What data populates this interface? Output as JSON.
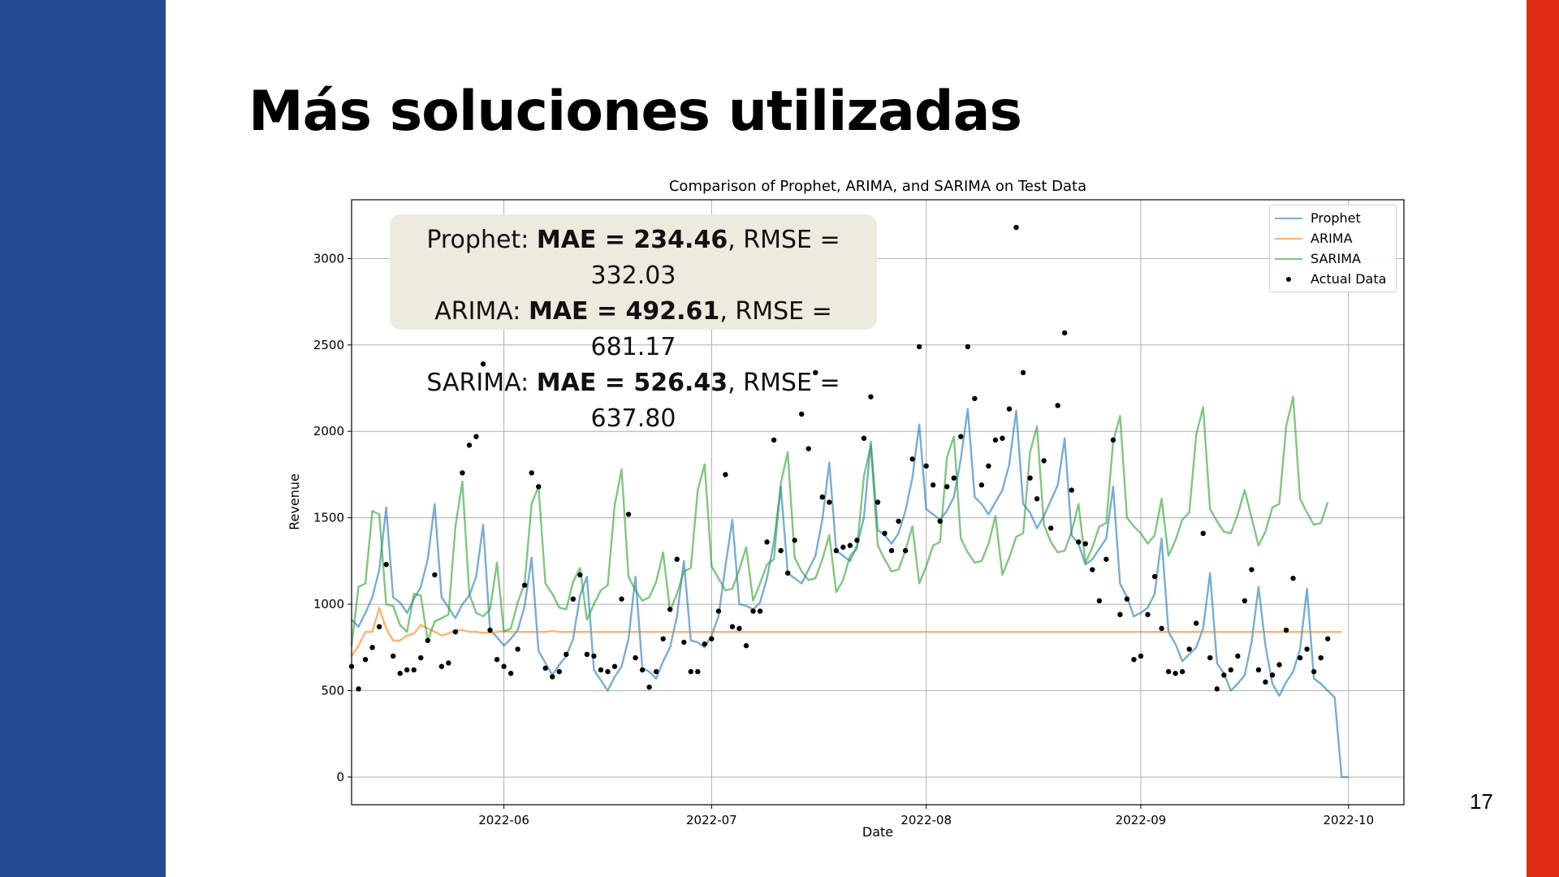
{
  "slide": {
    "title": "Más soluciones utilizadas",
    "page_number": "17",
    "left_bar_color": "#244a91",
    "right_bar_color": "#e02e16"
  },
  "metrics": [
    {
      "model": "Prophet",
      "mae": "MAE = 234.46",
      "rmse": ", RMSE = 332.03"
    },
    {
      "model": "ARIMA",
      "mae": "MAE = 492.61",
      "rmse": ", RMSE = 681.17"
    },
    {
      "model": "SARIMA",
      "mae": "MAE = 526.43",
      "rmse": ", RMSE = 637.80"
    }
  ],
  "chart_data": {
    "type": "line",
    "title": "Comparison of Prophet, ARIMA, and SARIMA on Test Data",
    "xlabel": "Date",
    "ylabel": "Revenue",
    "x_start": "2022-05-10",
    "x_ticks": [
      "2022-06",
      "2022-07",
      "2022-08",
      "2022-09",
      "2022-10"
    ],
    "y_ticks": [
      0,
      500,
      1000,
      1500,
      2000,
      2500,
      3000
    ],
    "ylim": [
      -160,
      3340
    ],
    "grid": true,
    "legend_position": "top-right",
    "series": [
      {
        "name": "Prophet",
        "color": "#1f77b4",
        "style": "line",
        "values": [
          910,
          870,
          950,
          1040,
          1200,
          1560,
          1040,
          1010,
          950,
          1030,
          1100,
          1260,
          1580,
          1040,
          980,
          920,
          1000,
          1050,
          1160,
          1460,
          850,
          810,
          760,
          800,
          850,
          990,
          1270,
          730,
          660,
          590,
          650,
          700,
          800,
          1050,
          1160,
          620,
          560,
          500,
          580,
          640,
          800,
          1160,
          630,
          610,
          570,
          670,
          750,
          930,
          1250,
          790,
          780,
          750,
          820,
          930,
          1220,
          1490,
          1000,
          990,
          970,
          1010,
          1150,
          1360,
          1680,
          1180,
          1150,
          1120,
          1200,
          1280,
          1490,
          1820,
          1310,
          1280,
          1250,
          1340,
          1500,
          1940,
          1430,
          1400,
          1350,
          1410,
          1540,
          1730,
          2040,
          1550,
          1520,
          1490,
          1540,
          1620,
          1840,
          2130,
          1620,
          1580,
          1520,
          1590,
          1660,
          1810,
          2120,
          1580,
          1530,
          1440,
          1510,
          1600,
          1690,
          1960,
          1400,
          1350,
          1230,
          1260,
          1320,
          1380,
          1680,
          1120,
          1040,
          930,
          950,
          980,
          1060,
          1380,
          840,
          770,
          670,
          710,
          750,
          860,
          1180,
          660,
          600,
          500,
          540,
          590,
          780,
          1100,
          760,
          540,
          470,
          550,
          610,
          740,
          1090,
          570,
          540,
          500,
          460,
          0,
          0
        ]
      },
      {
        "name": "ARIMA",
        "color": "#ff7f0e",
        "style": "line",
        "values": [
          700,
          760,
          840,
          840,
          980,
          860,
          790,
          790,
          820,
          830,
          880,
          860,
          840,
          820,
          830,
          850,
          850,
          840,
          840,
          835,
          835,
          840,
          845,
          840,
          840,
          840,
          840,
          840,
          840,
          845,
          840,
          840,
          840,
          840,
          840,
          840,
          840,
          840,
          840,
          840,
          840,
          840,
          840,
          840,
          840,
          840,
          840,
          840,
          840,
          840,
          840,
          840,
          840,
          840,
          840,
          840,
          840,
          840,
          840,
          840,
          840,
          840,
          840,
          840,
          840,
          840,
          840,
          840,
          840,
          840,
          840,
          840,
          840,
          840,
          840,
          840,
          840,
          840,
          840,
          840,
          840,
          840,
          840,
          840,
          840,
          840,
          840,
          840,
          840,
          840,
          840,
          840,
          840,
          840,
          840,
          840,
          840,
          840,
          840,
          840,
          840,
          840,
          840,
          840,
          840,
          840,
          840,
          840,
          840,
          840,
          840,
          840,
          840,
          840,
          840,
          840,
          840,
          840,
          840,
          840,
          840,
          840,
          840,
          840,
          840,
          840,
          840,
          840,
          840,
          840,
          840,
          840,
          840,
          840,
          840,
          840,
          840,
          840,
          840,
          840,
          840,
          840,
          840,
          840
        ]
      },
      {
        "name": "SARIMA",
        "color": "#2ca02c",
        "style": "line",
        "values": [
          760,
          1100,
          1120,
          1540,
          1520,
          1000,
          990,
          880,
          840,
          1060,
          1050,
          790,
          900,
          920,
          940,
          1450,
          1710,
          1060,
          950,
          930,
          970,
          1240,
          840,
          860,
          1010,
          1120,
          1580,
          1680,
          1120,
          1060,
          980,
          970,
          1130,
          1210,
          910,
          1000,
          1080,
          1110,
          1570,
          1780,
          1160,
          1080,
          1020,
          1040,
          1130,
          1300,
          960,
          1060,
          1190,
          1210,
          1660,
          1810,
          1220,
          1150,
          1080,
          1090,
          1200,
          1330,
          1020,
          1120,
          1230,
          1260,
          1700,
          1880,
          1270,
          1190,
          1140,
          1150,
          1260,
          1400,
          1070,
          1140,
          1280,
          1320,
          1740,
          1920,
          1340,
          1260,
          1190,
          1200,
          1310,
          1450,
          1120,
          1220,
          1340,
          1360,
          1850,
          1970,
          1380,
          1300,
          1240,
          1250,
          1350,
          1510,
          1170,
          1270,
          1390,
          1410,
          1880,
          2030,
          1460,
          1360,
          1300,
          1310,
          1420,
          1580,
          1240,
          1330,
          1450,
          1470,
          1940,
          2090,
          1500,
          1450,
          1410,
          1350,
          1400,
          1610,
          1280,
          1370,
          1490,
          1530,
          1980,
          2140,
          1550,
          1480,
          1420,
          1410,
          1520,
          1660,
          1500,
          1340,
          1420,
          1560,
          1580,
          2030,
          2200,
          1610,
          1530,
          1460,
          1470,
          1590
        ]
      },
      {
        "name": "Actual Data",
        "color": "#000000",
        "style": "dots",
        "points": [
          [
            0,
            640
          ],
          [
            1,
            510
          ],
          [
            2,
            680
          ],
          [
            3,
            750
          ],
          [
            4,
            870
          ],
          [
            5,
            1230
          ],
          [
            6,
            700
          ],
          [
            7,
            600
          ],
          [
            8,
            620
          ],
          [
            9,
            620
          ],
          [
            10,
            690
          ],
          [
            11,
            790
          ],
          [
            12,
            1170
          ],
          [
            13,
            640
          ],
          [
            14,
            660
          ],
          [
            15,
            840
          ],
          [
            16,
            1760
          ],
          [
            17,
            1920
          ],
          [
            18,
            1970
          ],
          [
            19,
            2390
          ],
          [
            20,
            850
          ],
          [
            21,
            680
          ],
          [
            22,
            640
          ],
          [
            23,
            600
          ],
          [
            24,
            740
          ],
          [
            25,
            1110
          ],
          [
            26,
            1760
          ],
          [
            27,
            1680
          ],
          [
            28,
            630
          ],
          [
            29,
            580
          ],
          [
            30,
            610
          ],
          [
            31,
            710
          ],
          [
            32,
            1030
          ],
          [
            33,
            1170
          ],
          [
            34,
            710
          ],
          [
            35,
            700
          ],
          [
            36,
            620
          ],
          [
            37,
            610
          ],
          [
            38,
            640
          ],
          [
            39,
            1030
          ],
          [
            40,
            1520
          ],
          [
            41,
            690
          ],
          [
            42,
            620
          ],
          [
            43,
            520
          ],
          [
            44,
            610
          ],
          [
            45,
            800
          ],
          [
            46,
            970
          ],
          [
            47,
            1260
          ],
          [
            48,
            780
          ],
          [
            49,
            610
          ],
          [
            50,
            610
          ],
          [
            51,
            770
          ],
          [
            52,
            800
          ],
          [
            53,
            960
          ],
          [
            54,
            1750
          ],
          [
            55,
            870
          ],
          [
            56,
            860
          ],
          [
            57,
            760
          ],
          [
            58,
            960
          ],
          [
            59,
            960
          ],
          [
            60,
            1360
          ],
          [
            61,
            1950
          ],
          [
            62,
            1310
          ],
          [
            63,
            1180
          ],
          [
            64,
            1370
          ],
          [
            65,
            2100
          ],
          [
            66,
            1900
          ],
          [
            67,
            2340
          ],
          [
            68,
            1620
          ],
          [
            69,
            1590
          ],
          [
            70,
            1310
          ],
          [
            71,
            1330
          ],
          [
            72,
            1340
          ],
          [
            73,
            1370
          ],
          [
            74,
            1960
          ],
          [
            75,
            2200
          ],
          [
            76,
            1590
          ],
          [
            77,
            1410
          ],
          [
            78,
            1310
          ],
          [
            79,
            1480
          ],
          [
            80,
            1310
          ],
          [
            81,
            1840
          ],
          [
            82,
            2490
          ],
          [
            83,
            1800
          ],
          [
            84,
            1690
          ],
          [
            85,
            1480
          ],
          [
            86,
            1680
          ],
          [
            87,
            1730
          ],
          [
            88,
            1970
          ],
          [
            89,
            2490
          ],
          [
            90,
            2190
          ],
          [
            91,
            1690
          ],
          [
            92,
            1800
          ],
          [
            93,
            1950
          ],
          [
            94,
            1960
          ],
          [
            95,
            2130
          ],
          [
            96,
            3180
          ],
          [
            97,
            2340
          ],
          [
            98,
            1730
          ],
          [
            99,
            1610
          ],
          [
            100,
            1830
          ],
          [
            101,
            1440
          ],
          [
            102,
            2150
          ],
          [
            103,
            2570
          ],
          [
            104,
            1660
          ],
          [
            105,
            1360
          ],
          [
            106,
            1350
          ],
          [
            107,
            1200
          ],
          [
            108,
            1020
          ],
          [
            109,
            1260
          ],
          [
            110,
            1950
          ],
          [
            111,
            940
          ],
          [
            112,
            1030
          ],
          [
            113,
            680
          ],
          [
            114,
            700
          ],
          [
            115,
            940
          ],
          [
            116,
            1160
          ],
          [
            117,
            860
          ],
          [
            118,
            610
          ],
          [
            119,
            600
          ],
          [
            120,
            610
          ],
          [
            121,
            740
          ],
          [
            122,
            890
          ],
          [
            123,
            1410
          ],
          [
            124,
            690
          ],
          [
            125,
            510
          ],
          [
            126,
            590
          ],
          [
            127,
            620
          ],
          [
            128,
            700
          ],
          [
            129,
            1020
          ],
          [
            130,
            1200
          ],
          [
            131,
            620
          ],
          [
            132,
            550
          ],
          [
            133,
            590
          ],
          [
            134,
            650
          ],
          [
            135,
            850
          ],
          [
            136,
            1150
          ],
          [
            137,
            690
          ],
          [
            138,
            740
          ],
          [
            139,
            610
          ],
          [
            140,
            690
          ],
          [
            141,
            800
          ]
        ]
      }
    ]
  }
}
